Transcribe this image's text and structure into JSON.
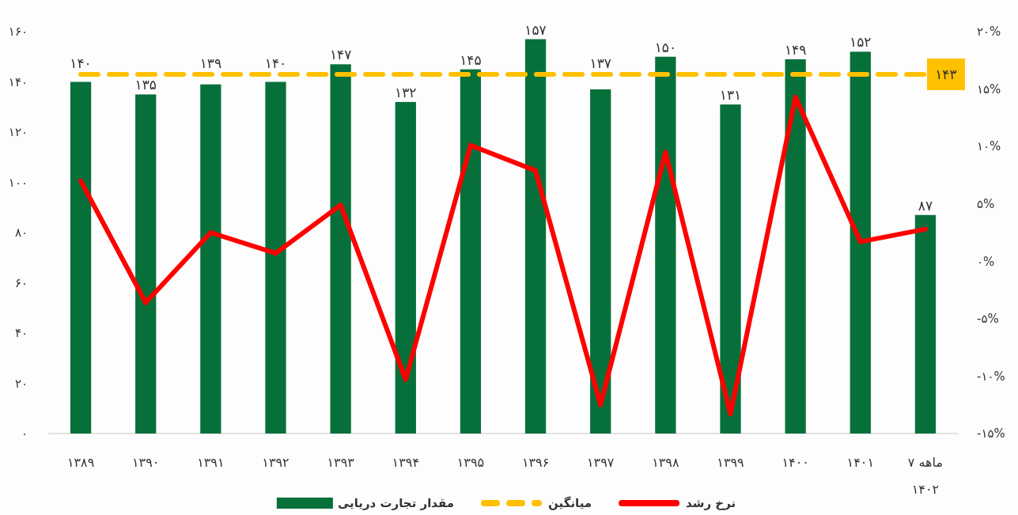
{
  "chart_data": {
    "type": "bar",
    "categories": [
      "۱۳۸۹",
      "۱۳۹۰",
      "۱۳۹۱",
      "۱۳۹۲",
      "۱۳۹۳",
      "۱۳۹۴",
      "۱۳۹۵",
      "۱۳۹۶",
      "۱۳۹۷",
      "۱۳۹۸",
      "۱۳۹۹",
      "۱۴۰۰",
      "۱۴۰۱",
      "۷ ماهه ۱۴۰۲"
    ],
    "series": [
      {
        "name": "مقدار تجارت دریایی",
        "color": "#07703a",
        "values": [
          140,
          135,
          139,
          140,
          147,
          132,
          145,
          157,
          137,
          150,
          131,
          149,
          152,
          87
        ],
        "value_labels": [
          "۱۴۰",
          "۱۳۵",
          "۱۳۹",
          "۱۴۰",
          "۱۴۷",
          "۱۳۲",
          "۱۴۵",
          "۱۵۷",
          "۱۳۷",
          "۱۵۰",
          "۱۳۱",
          "۱۴۹",
          "۱۵۲",
          "۸۷"
        ]
      },
      {
        "name": "میانگین",
        "type": "line",
        "color": "#ffc000",
        "line_style": "dashed",
        "values": [
          143,
          143,
          143,
          143,
          143,
          143,
          143,
          143,
          143,
          143,
          143,
          143,
          143,
          143
        ],
        "value_labels": [
          null,
          null,
          null,
          null,
          null,
          null,
          null,
          null,
          null,
          null,
          null,
          null,
          null,
          "۱۴۳"
        ]
      },
      {
        "name": "نرخ رشد",
        "type": "line",
        "axis": "y2",
        "color": "#ff0000",
        "line_style": "solid",
        "values": [
          7.0,
          -3.6,
          2.5,
          0.7,
          4.9,
          -10.3,
          10.1,
          7.9,
          -12.5,
          9.5,
          -13.3,
          14.3,
          1.7,
          2.8
        ]
      }
    ],
    "ylim": [
      0,
      160
    ],
    "yticks": [
      {
        "value": 0,
        "label": "۰"
      },
      {
        "value": 20,
        "label": "۲۰"
      },
      {
        "value": 40,
        "label": "۴۰"
      },
      {
        "value": 60,
        "label": "۶۰"
      },
      {
        "value": 80,
        "label": "۸۰"
      },
      {
        "value": 100,
        "label": "۱۰۰"
      },
      {
        "value": 120,
        "label": "۱۲۰"
      },
      {
        "value": 140,
        "label": "۱۴۰"
      },
      {
        "value": 160,
        "label": "۱۶۰"
      }
    ],
    "y2lim": [
      -15,
      20
    ],
    "y2ticks": [
      {
        "value": -15,
        "label": "-۱۵%"
      },
      {
        "value": -10,
        "label": "-۱۰%"
      },
      {
        "value": -5,
        "label": "-۵%"
      },
      {
        "value": 0,
        "label": "۰%"
      },
      {
        "value": 5,
        "label": "۵%"
      },
      {
        "value": 10,
        "label": "۱۰%"
      },
      {
        "value": 15,
        "label": "۱۵%"
      },
      {
        "value": 20,
        "label": "۲۰%"
      }
    ],
    "grid": false,
    "marker": "none",
    "legend": "bottom"
  }
}
